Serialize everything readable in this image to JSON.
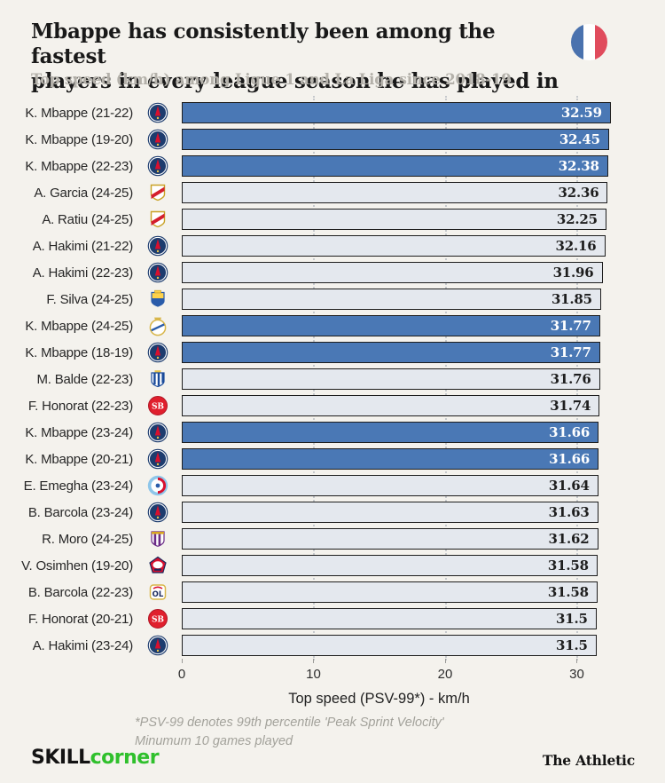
{
  "header": {
    "title_line1": "Mbappe has consistently been among the fastest",
    "title_line2": "players in every league season he has played in",
    "subtitle": "Top speed (km/h) among Ligue 1 and La Liga since 2018-19",
    "flag": {
      "icon": "france-flag-icon",
      "blue": "#4a72ae",
      "white": "#ffffff",
      "red": "#e04b5c"
    }
  },
  "chart_data": {
    "type": "bar",
    "orientation": "horizontal",
    "title": "Mbappe has consistently been among the fastest players in every league season he has played in",
    "subtitle": "Top speed (km/h) among Ligue 1 and La Liga since 2018-19",
    "xlabel": "Top speed (PSV-99*) - km/h",
    "xlim": [
      0,
      33
    ],
    "xticks": [
      0,
      10,
      20,
      30
    ],
    "grid": "dotted vertical at 10/20/30",
    "highlight_color": "#4a78b5",
    "default_color": "#e4e8ee",
    "bar_border_color": "#1d1d1d",
    "rows": [
      {
        "label": "K. Mbappe (21-22)",
        "club": "psg",
        "value": 32.59,
        "value_label": "32.59",
        "highlight": true
      },
      {
        "label": "K. Mbappe (19-20)",
        "club": "psg",
        "value": 32.45,
        "value_label": "32.45",
        "highlight": true
      },
      {
        "label": "K. Mbappe (22-23)",
        "club": "psg",
        "value": 32.38,
        "value_label": "32.38",
        "highlight": true
      },
      {
        "label": "A. Garcia (24-25)",
        "club": "rayo-vallecano",
        "value": 32.36,
        "value_label": "32.36",
        "highlight": false
      },
      {
        "label": "A. Ratiu (24-25)",
        "club": "rayo-vallecano",
        "value": 32.25,
        "value_label": "32.25",
        "highlight": false
      },
      {
        "label": "A. Hakimi (21-22)",
        "club": "psg",
        "value": 32.16,
        "value_label": "32.16",
        "highlight": false
      },
      {
        "label": "A. Hakimi (22-23)",
        "club": "psg",
        "value": 31.96,
        "value_label": "31.96",
        "highlight": false
      },
      {
        "label": "F. Silva (24-25)",
        "club": "las-palmas",
        "value": 31.85,
        "value_label": "31.85",
        "highlight": false
      },
      {
        "label": "K. Mbappe (24-25)",
        "club": "real-madrid",
        "value": 31.77,
        "value_label": "31.77",
        "highlight": true
      },
      {
        "label": "K. Mbappe (18-19)",
        "club": "psg",
        "value": 31.77,
        "value_label": "31.77",
        "highlight": true
      },
      {
        "label": "M. Balde (22-23)",
        "club": "espanyol",
        "value": 31.76,
        "value_label": "31.76",
        "highlight": false
      },
      {
        "label": "F. Honorat (22-23)",
        "club": "brest",
        "value": 31.74,
        "value_label": "31.74",
        "highlight": false
      },
      {
        "label": "K. Mbappe (23-24)",
        "club": "psg",
        "value": 31.66,
        "value_label": "31.66",
        "highlight": true
      },
      {
        "label": "K. Mbappe (20-21)",
        "club": "psg",
        "value": 31.66,
        "value_label": "31.66",
        "highlight": true
      },
      {
        "label": "E. Emegha (23-24)",
        "club": "strasbourg",
        "value": 31.64,
        "value_label": "31.64",
        "highlight": false
      },
      {
        "label": "B. Barcola (23-24)",
        "club": "psg",
        "value": 31.63,
        "value_label": "31.63",
        "highlight": false
      },
      {
        "label": "R. Moro (24-25)",
        "club": "real-valladolid",
        "value": 31.62,
        "value_label": "31.62",
        "highlight": false
      },
      {
        "label": "V. Osimhen (19-20)",
        "club": "lille",
        "value": 31.58,
        "value_label": "31.58",
        "highlight": false
      },
      {
        "label": "B. Barcola (22-23)",
        "club": "lyon",
        "value": 31.58,
        "value_label": "31.58",
        "highlight": false
      },
      {
        "label": "F. Honorat (20-21)",
        "club": "brest",
        "value": 31.5,
        "value_label": "31.5",
        "highlight": false
      },
      {
        "label": "A. Hakimi (23-24)",
        "club": "psg",
        "value": 31.5,
        "value_label": "31.5",
        "highlight": false
      }
    ]
  },
  "axis": {
    "tick_labels": [
      "0",
      "10",
      "20",
      "30"
    ],
    "label": "Top speed (PSV-99*) - km/h"
  },
  "footnote": {
    "line1": "*PSV-99 denotes 99th percentile 'Peak Sprint Velocity'",
    "line2": "Minumum 10 games played"
  },
  "footer": {
    "brand_black": "SKILL",
    "brand_green": "corner",
    "brand_green_color": "#2fc02c",
    "attribution": "The Athletic"
  }
}
